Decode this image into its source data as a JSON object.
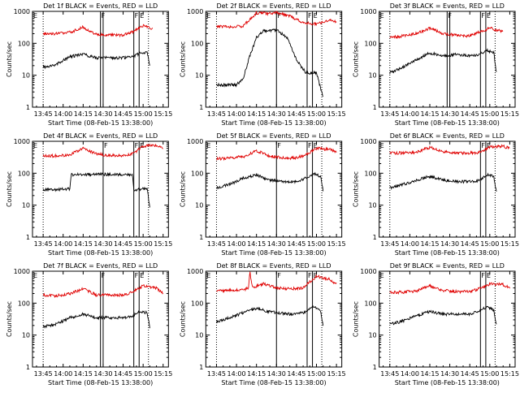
{
  "chart_data": [
    {
      "type": "line",
      "title": "Det 1f BLACK = Events, RED = LLD",
      "xlabel": "Start Time (08-Feb-15 13:38:00)",
      "ylabel": "Counts/sec",
      "y_scale": "log",
      "ylim": [
        1,
        1000
      ],
      "xlim": [
        "13:37",
        "15:19"
      ],
      "x_ticks": [
        "13:45",
        "14:00",
        "14:15",
        "14:30",
        "14:45",
        "15:00",
        "15:15"
      ],
      "y_ticks": [
        "1",
        "10",
        "100",
        "1000"
      ],
      "grid": false,
      "legend": "none",
      "markers": [
        {
          "x": "13:45",
          "style": "dotted",
          "label": ""
        },
        {
          "x": "14:28",
          "style": "solid",
          "label": "F"
        },
        {
          "x": "14:30",
          "style": "solid",
          "label": ""
        },
        {
          "x": "14:53",
          "style": "solid",
          "label": "F"
        },
        {
          "x": "14:57",
          "style": "solid",
          "label": "E"
        },
        {
          "x": "15:04",
          "style": "dotted",
          "label": ""
        }
      ],
      "corner_label": "E",
      "series": [
        {
          "color": "#e00000",
          "x": [
            "13:45",
            "13:55",
            "14:05",
            "14:15",
            "14:25",
            "14:35",
            "14:45",
            "14:52",
            "15:00",
            "15:07"
          ],
          "values": [
            200,
            200,
            220,
            320,
            190,
            180,
            180,
            230,
            350,
            280
          ]
        },
        {
          "color": "#000000",
          "x": [
            "13:45",
            "13:55",
            "14:05",
            "14:15",
            "14:25",
            "14:35",
            "14:45",
            "14:52",
            "14:58",
            "15:03",
            "15:05"
          ],
          "values": [
            18,
            22,
            38,
            45,
            35,
            35,
            35,
            38,
            50,
            50,
            20
          ]
        }
      ]
    },
    {
      "type": "line",
      "title": "Det 2f BLACK = Events, RED = LLD",
      "xlabel": "Start Time (08-Feb-15 13:38:00)",
      "ylabel": "Counts/sec",
      "y_scale": "log",
      "ylim": [
        1,
        1000
      ],
      "xlim": [
        "13:37",
        "15:19"
      ],
      "x_ticks": [
        "13:45",
        "14:00",
        "14:15",
        "14:30",
        "14:45",
        "15:00",
        "15:15"
      ],
      "y_ticks": [
        "1",
        "10",
        "100",
        "1000"
      ],
      "grid": false,
      "legend": "none",
      "markers": [
        {
          "x": "13:45",
          "style": "dotted",
          "label": ""
        },
        {
          "x": "14:30",
          "style": "solid",
          "label": "F"
        },
        {
          "x": "14:53",
          "style": "solid",
          "label": "F"
        },
        {
          "x": "14:57",
          "style": "solid",
          "label": "E"
        },
        {
          "x": "15:04",
          "style": "dotted",
          "label": ""
        }
      ],
      "corner_label": "E",
      "series": [
        {
          "color": "#e00000",
          "x": [
            "13:45",
            "13:55",
            "14:05",
            "14:15",
            "14:25",
            "14:30",
            "14:40",
            "14:50",
            "15:00",
            "15:10",
            "15:15"
          ],
          "values": [
            350,
            320,
            350,
            900,
            850,
            950,
            700,
            450,
            400,
            550,
            450
          ]
        },
        {
          "color": "#000000",
          "x": [
            "13:45",
            "13:50",
            "14:00",
            "14:05",
            "14:10",
            "14:15",
            "14:20",
            "14:30",
            "14:38",
            "14:45",
            "14:52",
            "15:00",
            "15:05"
          ],
          "values": [
            5,
            5,
            5,
            8,
            40,
            150,
            240,
            260,
            150,
            30,
            12,
            12,
            2
          ]
        }
      ]
    },
    {
      "type": "line",
      "title": "Det 3f BLACK = Events, RED = LLD",
      "xlabel": "Start Time (08-Feb-15 13:38:00)",
      "ylabel": "Counts/sec",
      "y_scale": "log",
      "ylim": [
        1,
        1000
      ],
      "xlim": [
        "13:37",
        "15:19"
      ],
      "x_ticks": [
        "13:45",
        "14:00",
        "14:15",
        "14:30",
        "14:45",
        "15:00",
        "15:15"
      ],
      "y_ticks": [
        "1",
        "10",
        "100",
        "1000"
      ],
      "grid": false,
      "legend": "none",
      "markers": [
        {
          "x": "13:45",
          "style": "dotted",
          "label": ""
        },
        {
          "x": "14:28",
          "style": "solid",
          "label": "F"
        },
        {
          "x": "14:30",
          "style": "solid",
          "label": ""
        },
        {
          "x": "14:53",
          "style": "solid",
          "label": "F"
        },
        {
          "x": "14:57",
          "style": "solid",
          "label": "E"
        },
        {
          "x": "15:04",
          "style": "dotted",
          "label": ""
        }
      ],
      "corner_label": "E",
      "series": [
        {
          "color": "#e00000",
          "x": [
            "13:45",
            "13:55",
            "14:05",
            "14:15",
            "14:25",
            "14:35",
            "14:45",
            "14:52",
            "15:00",
            "15:10"
          ],
          "values": [
            150,
            170,
            200,
            300,
            200,
            180,
            170,
            220,
            300,
            230
          ]
        },
        {
          "color": "#000000",
          "x": [
            "13:45",
            "13:55",
            "14:05",
            "14:15",
            "14:25",
            "14:35",
            "14:45",
            "14:52",
            "14:58",
            "15:03",
            "15:05"
          ],
          "values": [
            12,
            18,
            30,
            50,
            40,
            45,
            40,
            45,
            60,
            50,
            12
          ]
        }
      ]
    },
    {
      "type": "line",
      "title": "Det 4f BLACK = Events, RED = LLD",
      "xlabel": "Start Time (08-Feb-15 13:38:00)",
      "ylabel": "Counts/sec",
      "y_scale": "log",
      "ylim": [
        1,
        1000
      ],
      "xlim": [
        "13:37",
        "15:19"
      ],
      "x_ticks": [
        "13:45",
        "14:00",
        "14:15",
        "14:30",
        "14:45",
        "15:00",
        "15:15"
      ],
      "y_ticks": [
        "1",
        "10",
        "100",
        "1000"
      ],
      "grid": false,
      "legend": "none",
      "markers": [
        {
          "x": "13:45",
          "style": "dotted",
          "label": ""
        },
        {
          "x": "14:30",
          "style": "solid",
          "label": "F"
        },
        {
          "x": "14:53",
          "style": "solid",
          "label": "F"
        },
        {
          "x": "14:57",
          "style": "solid",
          "label": "E"
        },
        {
          "x": "15:04",
          "style": "dotted",
          "label": ""
        }
      ],
      "corner_label": "E",
      "series": [
        {
          "color": "#e00000",
          "x": [
            "13:45",
            "13:55",
            "14:05",
            "14:15",
            "14:25",
            "14:35",
            "14:45",
            "14:52",
            "15:00",
            "15:10",
            "15:15"
          ],
          "values": [
            350,
            350,
            380,
            600,
            400,
            360,
            360,
            400,
            700,
            750,
            600
          ]
        },
        {
          "color": "#000000",
          "x": [
            "13:45",
            "14:05",
            "14:06",
            "14:30",
            "14:52",
            "14:53",
            "15:00",
            "15:03",
            "15:05"
          ],
          "values": [
            30,
            32,
            90,
            92,
            90,
            30,
            32,
            35,
            8
          ]
        }
      ]
    },
    {
      "type": "line",
      "title": "Det 5f BLACK = Events, RED = LLD",
      "xlabel": "Start Time (08-Feb-15 13:38:00)",
      "ylabel": "Counts/sec",
      "y_scale": "log",
      "ylim": [
        1,
        1000
      ],
      "xlim": [
        "13:37",
        "15:19"
      ],
      "x_ticks": [
        "13:45",
        "14:00",
        "14:15",
        "14:30",
        "14:45",
        "15:00",
        "15:15"
      ],
      "y_ticks": [
        "1",
        "10",
        "100",
        "1000"
      ],
      "grid": false,
      "legend": "none",
      "markers": [
        {
          "x": "13:45",
          "style": "dotted",
          "label": ""
        },
        {
          "x": "14:30",
          "style": "solid",
          "label": "F"
        },
        {
          "x": "14:53",
          "style": "solid",
          "label": "F"
        },
        {
          "x": "14:57",
          "style": "solid",
          "label": "E"
        },
        {
          "x": "15:04",
          "style": "dotted",
          "label": ""
        }
      ],
      "corner_label": "E",
      "series": [
        {
          "color": "#e00000",
          "x": [
            "13:45",
            "13:55",
            "14:05",
            "14:15",
            "14:25",
            "14:35",
            "14:45",
            "14:52",
            "15:00",
            "15:10",
            "15:15"
          ],
          "values": [
            280,
            300,
            330,
            500,
            350,
            300,
            300,
            380,
            600,
            550,
            450
          ]
        },
        {
          "color": "#000000",
          "x": [
            "13:45",
            "13:55",
            "14:05",
            "14:15",
            "14:25",
            "14:35",
            "14:45",
            "14:52",
            "14:58",
            "15:03",
            "15:05"
          ],
          "values": [
            35,
            45,
            70,
            90,
            60,
            55,
            55,
            70,
            100,
            80,
            30
          ]
        }
      ]
    },
    {
      "type": "line",
      "title": "Det 6f BLACK = Events, RED = LLD",
      "xlabel": "Start Time (08-Feb-15 13:38:00)",
      "ylabel": "Counts/sec",
      "y_scale": "log",
      "ylim": [
        1,
        1000
      ],
      "xlim": [
        "13:37",
        "15:19"
      ],
      "x_ticks": [
        "13:45",
        "14:00",
        "14:15",
        "14:30",
        "14:45",
        "15:00",
        "15:15"
      ],
      "y_ticks": [
        "1",
        "10",
        "100",
        "1000"
      ],
      "grid": false,
      "legend": "none",
      "markers": [
        {
          "x": "13:45",
          "style": "dotted",
          "label": ""
        },
        {
          "x": "14:53",
          "style": "solid",
          "label": "F"
        },
        {
          "x": "14:57",
          "style": "solid",
          "label": "E"
        },
        {
          "x": "15:04",
          "style": "dotted",
          "label": ""
        }
      ],
      "corner_label": "E",
      "series": [
        {
          "color": "#e00000",
          "x": [
            "13:45",
            "13:55",
            "14:05",
            "14:15",
            "14:25",
            "14:35",
            "14:45",
            "14:52",
            "15:00",
            "15:10",
            "15:15"
          ],
          "values": [
            430,
            430,
            450,
            650,
            470,
            430,
            430,
            450,
            650,
            700,
            600
          ]
        },
        {
          "color": "#000000",
          "x": [
            "13:45",
            "13:55",
            "14:05",
            "14:15",
            "14:25",
            "14:35",
            "14:45",
            "14:52",
            "14:58",
            "15:03",
            "15:05"
          ],
          "values": [
            35,
            45,
            60,
            80,
            60,
            55,
            55,
            60,
            90,
            80,
            25
          ]
        }
      ]
    },
    {
      "type": "line",
      "title": "Det 7f BLACK = Events, RED = LLD",
      "xlabel": "Start Time (08-Feb-15 13:38:00)",
      "ylabel": "Counts/sec",
      "y_scale": "log",
      "ylim": [
        1,
        1000
      ],
      "xlim": [
        "13:37",
        "15:19"
      ],
      "x_ticks": [
        "13:45",
        "14:00",
        "14:15",
        "14:30",
        "14:45",
        "15:00",
        "15:15"
      ],
      "y_ticks": [
        "1",
        "10",
        "100",
        "1000"
      ],
      "grid": false,
      "legend": "none",
      "markers": [
        {
          "x": "13:45",
          "style": "dotted",
          "label": ""
        },
        {
          "x": "14:28",
          "style": "solid",
          "label": "F"
        },
        {
          "x": "14:30",
          "style": "solid",
          "label": ""
        },
        {
          "x": "14:53",
          "style": "solid",
          "label": "F"
        },
        {
          "x": "14:57",
          "style": "solid",
          "label": "E"
        },
        {
          "x": "15:04",
          "style": "dotted",
          "label": ""
        }
      ],
      "corner_label": "E",
      "series": [
        {
          "color": "#e00000",
          "x": [
            "13:45",
            "13:55",
            "14:05",
            "14:15",
            "14:25",
            "14:35",
            "14:45",
            "14:52",
            "15:00",
            "15:10",
            "15:15"
          ],
          "values": [
            180,
            170,
            200,
            280,
            180,
            180,
            180,
            220,
            350,
            300,
            200
          ]
        },
        {
          "color": "#000000",
          "x": [
            "13:45",
            "13:55",
            "14:05",
            "14:15",
            "14:25",
            "14:35",
            "14:45",
            "14:52",
            "14:58",
            "15:03",
            "15:05"
          ],
          "values": [
            18,
            22,
            35,
            45,
            35,
            35,
            35,
            40,
            55,
            50,
            18
          ]
        }
      ]
    },
    {
      "type": "line",
      "title": "Det 8f BLACK = Events, RED = LLD",
      "xlabel": "Start Time (08-Feb-15 13:38:00)",
      "ylabel": "Counts/sec",
      "y_scale": "log",
      "ylim": [
        1,
        1000
      ],
      "xlim": [
        "13:37",
        "15:19"
      ],
      "x_ticks": [
        "13:45",
        "14:00",
        "14:15",
        "14:30",
        "14:45",
        "15:00",
        "15:15"
      ],
      "y_ticks": [
        "1",
        "10",
        "100",
        "1000"
      ],
      "grid": false,
      "legend": "none",
      "markers": [
        {
          "x": "13:45",
          "style": "dotted",
          "label": ""
        },
        {
          "x": "14:30",
          "style": "solid",
          "label": "F"
        },
        {
          "x": "14:53",
          "style": "solid",
          "label": "F"
        },
        {
          "x": "14:57",
          "style": "solid",
          "label": "E"
        },
        {
          "x": "15:04",
          "style": "dotted",
          "label": ""
        }
      ],
      "corner_label": "E",
      "series": [
        {
          "color": "#e00000",
          "x": [
            "13:45",
            "13:55",
            "14:05",
            "14:09",
            "14:10",
            "14:12",
            "14:20",
            "14:30",
            "14:40",
            "14:50",
            "15:00",
            "15:10",
            "15:15"
          ],
          "values": [
            250,
            250,
            260,
            300,
            1000,
            300,
            400,
            300,
            280,
            300,
            700,
            550,
            400
          ]
        },
        {
          "color": "#000000",
          "x": [
            "13:45",
            "13:55",
            "14:05",
            "14:15",
            "14:20",
            "14:30",
            "14:40",
            "14:50",
            "14:58",
            "15:03",
            "15:05"
          ],
          "values": [
            25,
            35,
            50,
            70,
            60,
            50,
            45,
            50,
            80,
            60,
            20
          ]
        }
      ]
    },
    {
      "type": "line",
      "title": "Det 9f BLACK = Events, RED = LLD",
      "xlabel": "Start Time (08-Feb-15 13:38:00)",
      "ylabel": "Counts/sec",
      "y_scale": "log",
      "ylim": [
        1,
        1000
      ],
      "xlim": [
        "13:37",
        "15:19"
      ],
      "x_ticks": [
        "13:45",
        "14:00",
        "14:15",
        "14:30",
        "14:45",
        "15:00",
        "15:15"
      ],
      "y_ticks": [
        "1",
        "10",
        "100",
        "1000"
      ],
      "grid": false,
      "legend": "none",
      "markers": [
        {
          "x": "13:45",
          "style": "dotted",
          "label": ""
        },
        {
          "x": "14:53",
          "style": "solid",
          "label": "F"
        },
        {
          "x": "14:57",
          "style": "solid",
          "label": "E"
        },
        {
          "x": "15:04",
          "style": "dotted",
          "label": ""
        }
      ],
      "corner_label": "E",
      "series": [
        {
          "color": "#e00000",
          "x": [
            "13:45",
            "13:55",
            "14:05",
            "14:15",
            "14:25",
            "14:35",
            "14:45",
            "14:52",
            "15:00",
            "15:10",
            "15:15"
          ],
          "values": [
            220,
            220,
            240,
            350,
            250,
            230,
            230,
            280,
            400,
            380,
            300
          ]
        },
        {
          "color": "#000000",
          "x": [
            "13:45",
            "13:55",
            "14:05",
            "14:15",
            "14:25",
            "14:35",
            "14:45",
            "14:52",
            "14:58",
            "15:03",
            "15:05"
          ],
          "values": [
            22,
            28,
            40,
            55,
            45,
            45,
            45,
            55,
            80,
            60,
            20
          ]
        }
      ]
    }
  ]
}
